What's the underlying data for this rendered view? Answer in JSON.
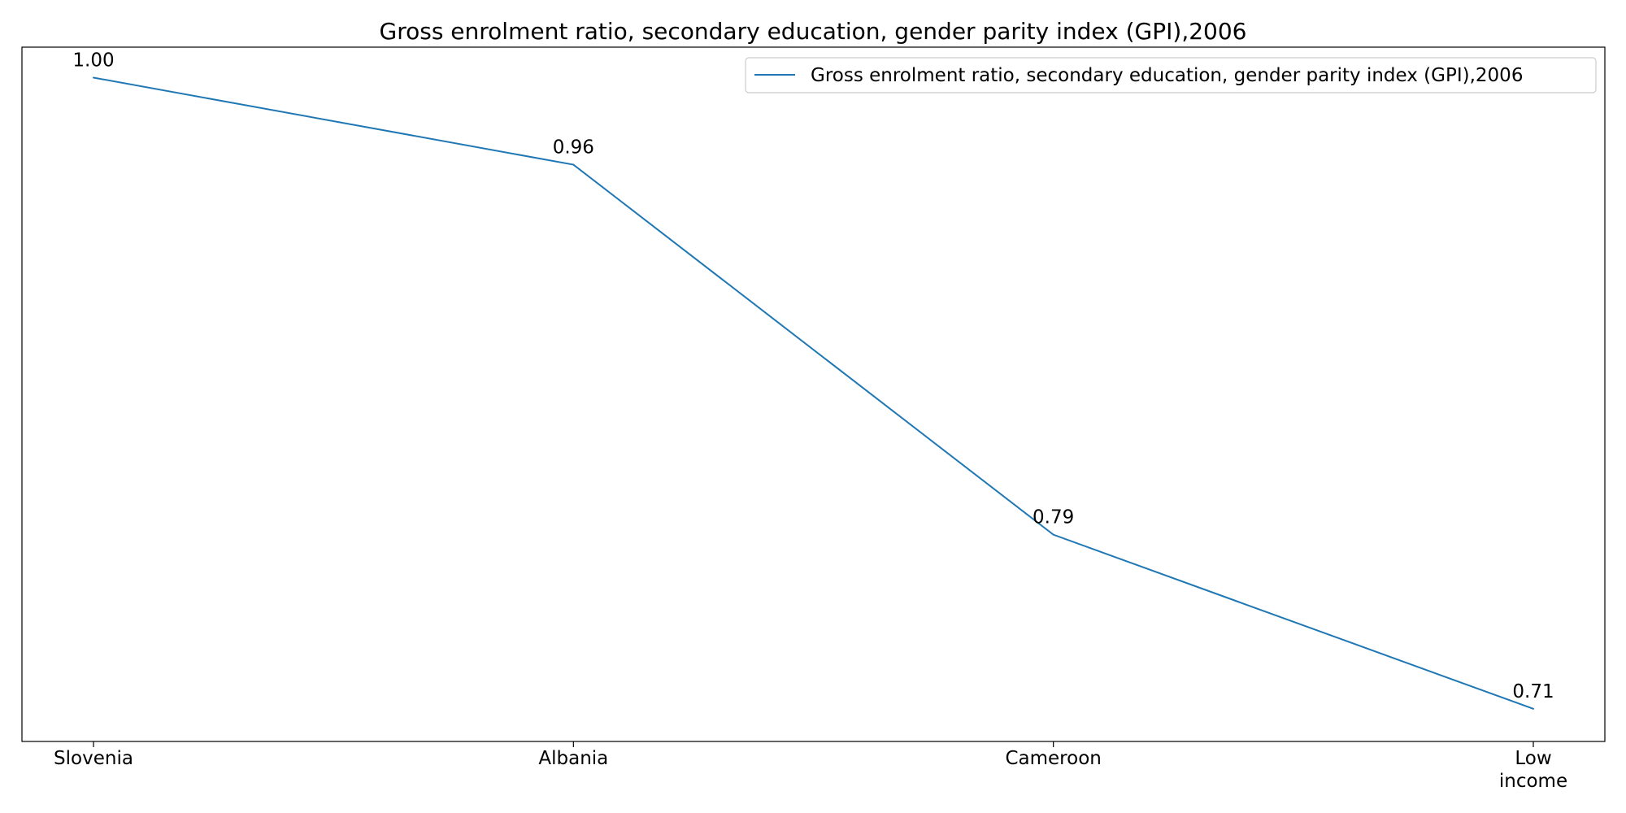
{
  "chart_data": {
    "type": "line",
    "title": "Gross enrolment ratio, secondary education, gender parity index (GPI),2006",
    "xlabel": "",
    "ylabel": "",
    "categories": [
      "Slovenia",
      "Albania",
      "Cameroon",
      "Low income"
    ],
    "series": [
      {
        "name": "Gross enrolment ratio, secondary education, gender parity index (GPI),2006",
        "values": [
          1.0,
          0.96,
          0.79,
          0.71
        ],
        "labels": [
          "1.00",
          "0.96",
          "0.79",
          "0.71"
        ],
        "color": "#1f77b4"
      }
    ],
    "ylim": [
      0.695,
      1.014
    ],
    "y_ticks_visible": false,
    "grid": false,
    "legend": "top-right"
  }
}
